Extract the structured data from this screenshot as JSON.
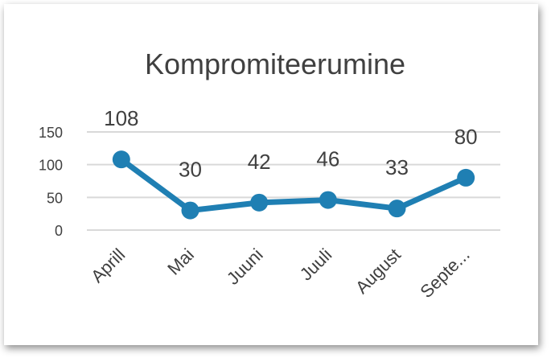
{
  "chart_data": {
    "type": "line",
    "title": "Kompromiteerumine",
    "categories": [
      "Aprill",
      "Mai",
      "Juuni",
      "Juuli",
      "August",
      "Septe..."
    ],
    "values": [
      108,
      30,
      42,
      46,
      33,
      80
    ],
    "data_labels": [
      "108",
      "30",
      "42",
      "46",
      "33",
      "80"
    ],
    "yticks": [
      "0",
      "50",
      "100",
      "150"
    ],
    "ytick_values": [
      0,
      50,
      100,
      150
    ],
    "ylim": [
      0,
      150
    ],
    "grid": true,
    "legend": "none",
    "colors": {
      "line": "#1F7FB3",
      "grid": "#d9d9d9",
      "text": "#404040"
    }
  }
}
